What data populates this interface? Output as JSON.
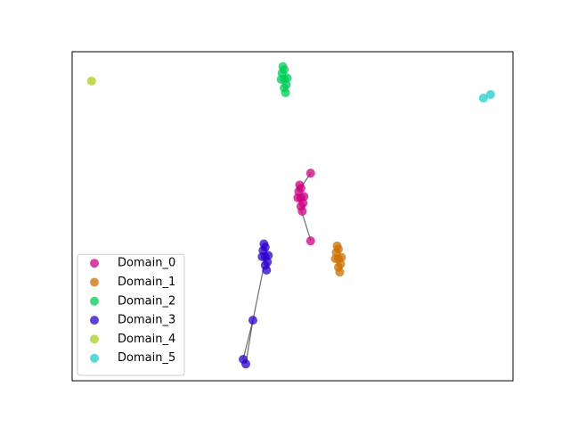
{
  "chart_data": {
    "type": "scatter",
    "xlim": [
      0,
      1
    ],
    "ylim": [
      0,
      1
    ],
    "legend": "lower left",
    "series": [
      {
        "name": "Domain_0",
        "color": "#cc0080",
        "x": [
          0.519,
          0.514,
          0.524,
          0.516,
          0.522,
          0.512,
          0.526,
          0.519,
          0.519,
          0.541,
          0.541
        ],
        "values": [
          0.556,
          0.575,
          0.54,
          0.595,
          0.515,
          0.556,
          0.56,
          0.53,
          0.585,
          0.631,
          0.425
        ]
      },
      {
        "name": "Domain_1",
        "color": "#cc7000",
        "x": [
          0.604,
          0.599,
          0.609,
          0.601,
          0.607,
          0.597,
          0.611,
          0.604,
          0.604
        ],
        "values": [
          0.371,
          0.39,
          0.355,
          0.41,
          0.33,
          0.371,
          0.375,
          0.345,
          0.4
        ]
      },
      {
        "name": "Domain_2",
        "color": "#00cc55",
        "x": [
          0.481,
          0.476,
          0.486,
          0.478,
          0.484,
          0.474,
          0.488,
          0.481,
          0.481
        ],
        "values": [
          0.916,
          0.935,
          0.9,
          0.955,
          0.875,
          0.916,
          0.92,
          0.89,
          0.945
        ]
      },
      {
        "name": "Domain_3",
        "color": "#2a00cc",
        "x": [
          0.438,
          0.433,
          0.443,
          0.435,
          0.441,
          0.431,
          0.445,
          0.438,
          0.438,
          0.41,
          0.388,
          0.394
        ],
        "values": [
          0.377,
          0.396,
          0.361,
          0.416,
          0.336,
          0.377,
          0.381,
          0.351,
          0.406,
          0.184,
          0.065,
          0.051
        ]
      },
      {
        "name": "Domain_4",
        "color": "#aacc20",
        "x": [
          0.044
        ],
        "values": [
          0.911
        ]
      },
      {
        "name": "Domain_5",
        "color": "#20cccc",
        "x": [
          0.933,
          0.949
        ],
        "values": [
          0.859,
          0.87
        ]
      }
    ]
  }
}
